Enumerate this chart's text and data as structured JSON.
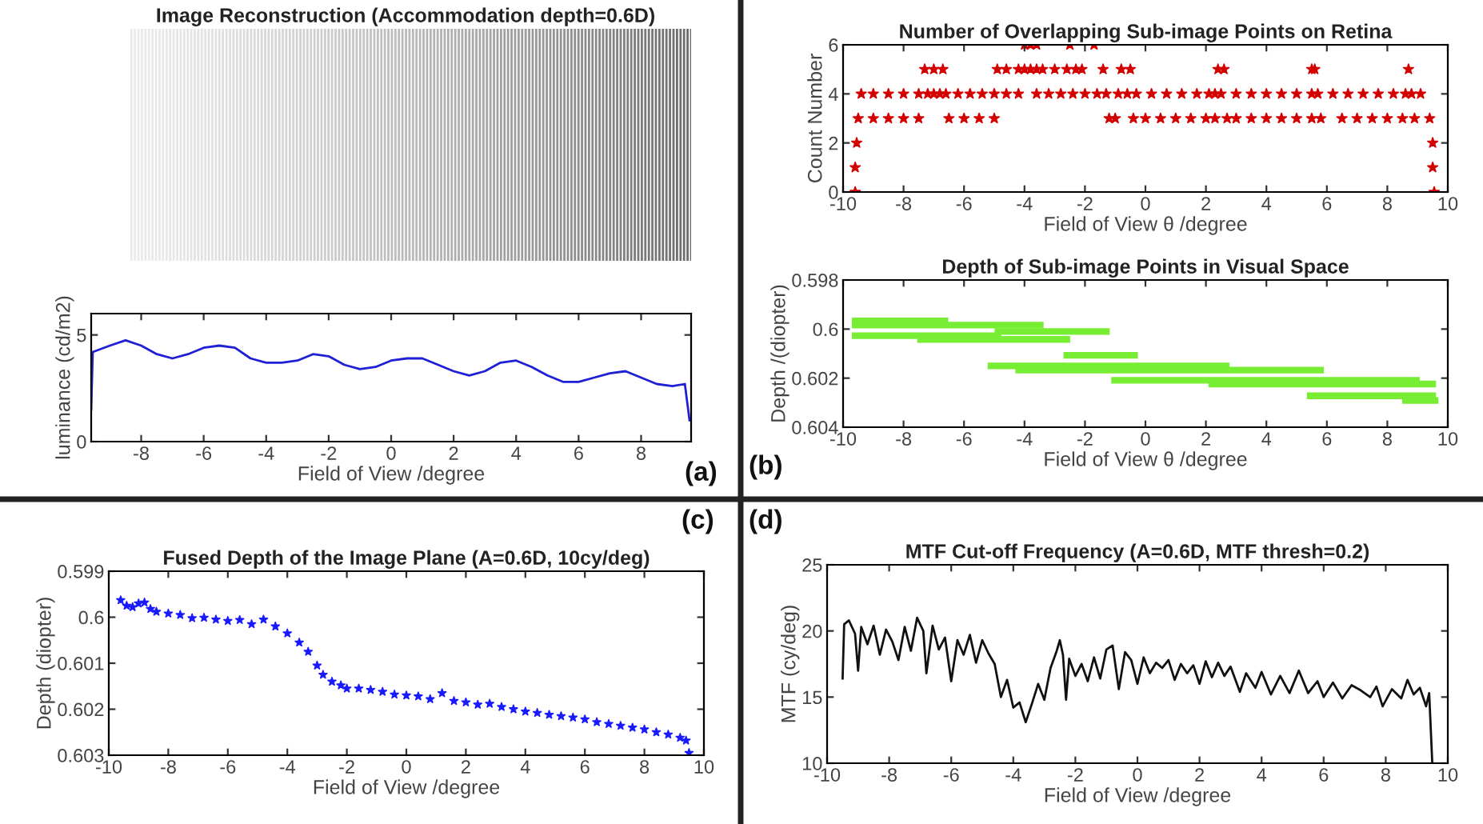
{
  "chart_data": [
    {
      "type": "line",
      "title": "Image Reconstruction (Accommodation depth=0.6D)",
      "xlabel": "Field of View /degree",
      "ylabel": "luminance (cd/m2)",
      "annotations": [
        "(a)"
      ],
      "marker": "none",
      "line_style": "solid",
      "x": [
        -9.6,
        -9.55,
        -9,
        -8.5,
        -8,
        -7.5,
        -7,
        -6.5,
        -6,
        -5.5,
        -5,
        -4.5,
        -4,
        -3.5,
        -3,
        -2.5,
        -2,
        -1.5,
        -1,
        -0.5,
        0,
        0.5,
        1,
        1.5,
        2,
        2.5,
        3,
        3.5,
        4,
        4.5,
        5,
        5.5,
        6,
        6.5,
        7,
        7.5,
        8,
        8.5,
        9,
        9.4,
        9.55
      ],
      "series": [
        {
          "color": "#1f1fd6",
          "values": [
            1.5,
            4.2,
            4.5,
            4.75,
            4.5,
            4.1,
            3.9,
            4.1,
            4.4,
            4.5,
            4.4,
            3.9,
            3.7,
            3.7,
            3.8,
            4.1,
            4.0,
            3.6,
            3.4,
            3.5,
            3.8,
            3.9,
            3.9,
            3.6,
            3.3,
            3.1,
            3.3,
            3.7,
            3.8,
            3.5,
            3.1,
            2.8,
            2.8,
            3.0,
            3.2,
            3.3,
            3.0,
            2.7,
            2.6,
            2.7,
            1.0
          ]
        }
      ],
      "xlim": [
        -9.6,
        9.6
      ],
      "ylim": [
        0,
        6
      ],
      "xticks": [
        -8,
        -6,
        -4,
        -2,
        0,
        2,
        4,
        6,
        8
      ],
      "yticks": [
        0,
        5
      ]
    },
    {
      "type": "scatter",
      "title": "Number of Overlapping Sub-image Points on Retina",
      "xlabel": "Field of View θ /degree",
      "ylabel": "Count Number",
      "marker": "star",
      "x": [
        -9.6,
        9.55,
        -9.6,
        9.5,
        -9.55,
        9.5,
        -9.5,
        -9,
        -8.5,
        -8,
        -7.5,
        -6.5,
        -6,
        -5.5,
        -5.0,
        -1.2,
        -1.0,
        -0.4,
        0,
        0.5,
        1,
        1.5,
        2,
        2.3,
        2.7,
        3,
        3.5,
        4,
        4.5,
        5,
        5.5,
        5.8,
        6.5,
        7,
        7.5,
        8,
        8.5,
        8.9,
        9.4,
        -9.4,
        -9,
        -8.5,
        -8,
        -7.5,
        -7.2,
        -7,
        -6.8,
        -6.6,
        -6.2,
        -5.8,
        -5.4,
        -5,
        -4.6,
        -4.2,
        -3.6,
        -3.2,
        -2.8,
        -2.4,
        -2,
        -1.6,
        -1.3,
        -0.9,
        -0.6,
        -0.3,
        0.2,
        0.7,
        1.2,
        1.7,
        2.1,
        2.3,
        2.5,
        3,
        3.5,
        4,
        4.5,
        5,
        5.5,
        5.7,
        6.2,
        6.7,
        7.2,
        7.7,
        8.2,
        8.6,
        8.8,
        9.1,
        -7.3,
        -7.0,
        -6.7,
        -4.9,
        -4.6,
        -4.2,
        -4.0,
        -3.8,
        -3.6,
        -3.4,
        -3.0,
        -2.6,
        -2.3,
        -2.1,
        -1.4,
        -0.8,
        -0.5,
        2.4,
        2.6,
        5.5,
        5.6,
        8.7,
        -4.0,
        -3.8,
        -3.6,
        -2.5,
        -1.7
      ],
      "series": [
        {
          "color": "#d40000",
          "values": [
            0,
            0,
            1,
            1,
            2,
            2,
            3,
            3,
            3,
            3,
            3,
            3,
            3,
            3,
            3,
            3,
            3,
            3,
            3,
            3,
            3,
            3,
            3,
            3,
            3,
            3,
            3,
            3,
            3,
            3,
            3,
            3,
            3,
            3,
            3,
            3,
            3,
            3,
            3,
            4,
            4,
            4,
            4,
            4,
            4,
            4,
            4,
            4,
            4,
            4,
            4,
            4,
            4,
            4,
            4,
            4,
            4,
            4,
            4,
            4,
            4,
            4,
            4,
            4,
            4,
            4,
            4,
            4,
            4,
            4,
            4,
            4,
            4,
            4,
            4,
            4,
            4,
            4,
            4,
            4,
            4,
            4,
            4,
            4,
            4,
            4,
            5,
            5,
            5,
            5,
            5,
            5,
            5,
            5,
            5,
            5,
            5,
            5,
            5,
            5,
            5,
            5,
            5,
            5,
            5,
            5,
            5,
            5,
            6,
            6,
            6,
            6,
            6
          ]
        }
      ],
      "xlim": [
        -10,
        10
      ],
      "ylim": [
        0,
        6
      ],
      "xticks": [
        -10,
        -8,
        -6,
        -4,
        -2,
        0,
        2,
        4,
        6,
        8,
        10
      ],
      "yticks": [
        0,
        2,
        4,
        6
      ]
    },
    {
      "type": "line",
      "title": "Depth of Sub-image Points in Visual Space",
      "xlabel": "Field of View θ /degree",
      "ylabel": "Depth /(diopter)",
      "annotations": [
        "(b)"
      ],
      "marker": "none",
      "line_style": "solid",
      "series": [
        {
          "color": "#77ee33",
          "x": [
            -9.6,
            -6.63
          ],
          "values": [
            0.59967,
            0.59967
          ]
        },
        {
          "color": "#77ee33",
          "x": [
            -9.6,
            -3.48
          ],
          "values": [
            0.59984,
            0.59984
          ]
        },
        {
          "color": "#77ee33",
          "x": [
            -4.88,
            -1.29
          ],
          "values": [
            0.6001,
            0.6001
          ]
        },
        {
          "color": "#77ee33",
          "x": [
            -9.6,
            -4.88
          ],
          "values": [
            0.60027,
            0.60027
          ]
        },
        {
          "color": "#77ee33",
          "x": [
            -7.44,
            -2.6
          ],
          "values": [
            0.60042,
            0.60042
          ]
        },
        {
          "color": "#77ee33",
          "x": [
            -2.6,
            -0.36
          ],
          "values": [
            0.60107,
            0.60107
          ]
        },
        {
          "color": "#77ee33",
          "x": [
            -5.11,
            2.67
          ],
          "values": [
            0.6015,
            0.6015
          ]
        },
        {
          "color": "#77ee33",
          "x": [
            -4.19,
            5.79
          ],
          "values": [
            0.60167,
            0.60167
          ]
        },
        {
          "color": "#77ee33",
          "x": [
            -1.02,
            8.96
          ],
          "values": [
            0.60209,
            0.60209
          ]
        },
        {
          "color": "#77ee33",
          "x": [
            2.2,
            9.5
          ],
          "values": [
            0.60224,
            0.60224
          ]
        },
        {
          "color": "#77ee33",
          "x": [
            5.45,
            9.5
          ],
          "values": [
            0.60272,
            0.60272
          ]
        },
        {
          "color": "#77ee33",
          "x": [
            8.6,
            9.58
          ],
          "values": [
            0.60291,
            0.60291
          ]
        }
      ],
      "xlim": [
        -10,
        10
      ],
      "ylim": [
        0.604,
        0.598
      ],
      "xticks": [
        -10,
        -8,
        -6,
        -4,
        -2,
        0,
        2,
        4,
        6,
        8,
        10
      ],
      "yticks": [
        0.598,
        0.6,
        0.602,
        0.604
      ]
    },
    {
      "type": "scatter",
      "title": "Fused Depth of the Image Plane (A=0.6D, 10cy/deg)",
      "xlabel": "Field of View /degree",
      "ylabel": "Depth (diopter)",
      "annotations": [
        "(c)"
      ],
      "marker": "star",
      "x": [
        -9.6,
        -9.4,
        -9.2,
        -9.0,
        -8.8,
        -8.6,
        -8.4,
        -8.0,
        -7.6,
        -7.2,
        -6.8,
        -6.4,
        -6.0,
        -5.6,
        -5.2,
        -4.8,
        -4.4,
        -4.0,
        -3.6,
        -3.3,
        -3.0,
        -2.8,
        -2.5,
        -2.2,
        -2.0,
        -1.6,
        -1.2,
        -0.8,
        -0.4,
        0,
        0.4,
        0.8,
        1.2,
        1.6,
        2.0,
        2.4,
        2.8,
        3.2,
        3.6,
        4.0,
        4.4,
        4.8,
        5.2,
        5.6,
        6.0,
        6.4,
        6.8,
        7.2,
        7.6,
        8.0,
        8.4,
        8.8,
        9.2,
        9.4,
        9.5
      ],
      "series": [
        {
          "color": "#1a1aff",
          "values": [
            0.59963,
            0.59975,
            0.59978,
            0.5997,
            0.59968,
            0.59982,
            0.59988,
            0.59992,
            0.59995,
            0.60002,
            0.60001,
            0.60005,
            0.60008,
            0.60006,
            0.60015,
            0.60005,
            0.6002,
            0.60035,
            0.60055,
            0.60075,
            0.60105,
            0.60125,
            0.6014,
            0.60148,
            0.60155,
            0.60155,
            0.60158,
            0.60162,
            0.60168,
            0.6017,
            0.60172,
            0.60178,
            0.60165,
            0.60182,
            0.60185,
            0.6019,
            0.60188,
            0.60195,
            0.602,
            0.60205,
            0.60208,
            0.60212,
            0.60215,
            0.60218,
            0.60222,
            0.60228,
            0.60232,
            0.60236,
            0.6024,
            0.60244,
            0.6025,
            0.60255,
            0.60262,
            0.60268,
            0.60295
          ]
        }
      ],
      "xlim": [
        -10,
        10
      ],
      "ylim": [
        0.603,
        0.599
      ],
      "xticks": [
        -10,
        -8,
        -6,
        -4,
        -2,
        0,
        2,
        4,
        6,
        8,
        10
      ],
      "yticks": [
        0.599,
        0.6,
        0.601,
        0.602,
        0.603
      ]
    },
    {
      "type": "line",
      "title": "MTF Cut-off Frequency (A=0.6D, MTF thresh=0.2)",
      "xlabel": "Field of View /degree",
      "ylabel": "MTF (cy/deg)",
      "annotations": [
        "(d)"
      ],
      "marker": "none",
      "line_style": "solid",
      "x": [
        -9.5,
        -9.45,
        -9.3,
        -9.1,
        -9,
        -8.9,
        -8.7,
        -8.5,
        -8.3,
        -8.1,
        -7.9,
        -7.7,
        -7.5,
        -7.3,
        -7.1,
        -6.9,
        -6.8,
        -6.6,
        -6.4,
        -6.2,
        -6.0,
        -5.8,
        -5.6,
        -5.4,
        -5.2,
        -5.0,
        -4.8,
        -4.6,
        -4.4,
        -4.2,
        -4.0,
        -3.8,
        -3.6,
        -3.4,
        -3.2,
        -3.0,
        -2.8,
        -2.6,
        -2.5,
        -2.4,
        -2.3,
        -2.2,
        -2.0,
        -1.8,
        -1.6,
        -1.4,
        -1.2,
        -1.0,
        -0.8,
        -0.6,
        -0.4,
        -0.2,
        0,
        0.2,
        0.4,
        0.6,
        0.8,
        1.0,
        1.2,
        1.4,
        1.6,
        1.8,
        2.0,
        2.2,
        2.4,
        2.6,
        2.8,
        3.0,
        3.3,
        3.5,
        3.8,
        4.0,
        4.3,
        4.6,
        4.9,
        5.2,
        5.5,
        5.8,
        6.0,
        6.3,
        6.6,
        6.9,
        7.2,
        7.5,
        7.7,
        7.9,
        8.2,
        8.5,
        8.7,
        8.9,
        9.1,
        9.3,
        9.4,
        9.5
      ],
      "series": [
        {
          "color": "#111111",
          "values": [
            16.4,
            20.5,
            20.8,
            19.8,
            17.0,
            20.3,
            19.0,
            20.4,
            18.2,
            20.1,
            19.2,
            17.8,
            20.3,
            18.5,
            21.0,
            20.0,
            16.8,
            20.4,
            18.6,
            19.5,
            16.2,
            19.3,
            18.2,
            19.7,
            17.6,
            19.3,
            18.3,
            17.5,
            15.0,
            16.3,
            14.2,
            14.6,
            13.1,
            14.5,
            16.0,
            14.8,
            17.2,
            18.5,
            19.3,
            18.2,
            14.8,
            17.9,
            16.6,
            17.5,
            16.2,
            18.0,
            16.4,
            18.6,
            18.9,
            15.6,
            18.4,
            17.8,
            16.0,
            18.0,
            16.8,
            17.6,
            17.2,
            17.8,
            16.3,
            17.5,
            16.8,
            17.4,
            16.0,
            17.7,
            16.5,
            17.6,
            16.6,
            17.3,
            15.4,
            16.8,
            15.7,
            16.9,
            15.2,
            16.6,
            15.3,
            17.0,
            15.3,
            16.2,
            15.0,
            16.1,
            14.9,
            15.9,
            15.5,
            15.0,
            15.8,
            14.3,
            15.6,
            14.9,
            16.3,
            15.2,
            15.7,
            14.3,
            15.3,
            10.0
          ]
        }
      ],
      "xlim": [
        -10,
        10
      ],
      "ylim": [
        10,
        25
      ],
      "xticks": [
        -10,
        -8,
        -6,
        -4,
        -2,
        0,
        2,
        4,
        6,
        8,
        10
      ],
      "yticks": [
        10,
        15,
        20,
        25
      ]
    }
  ]
}
